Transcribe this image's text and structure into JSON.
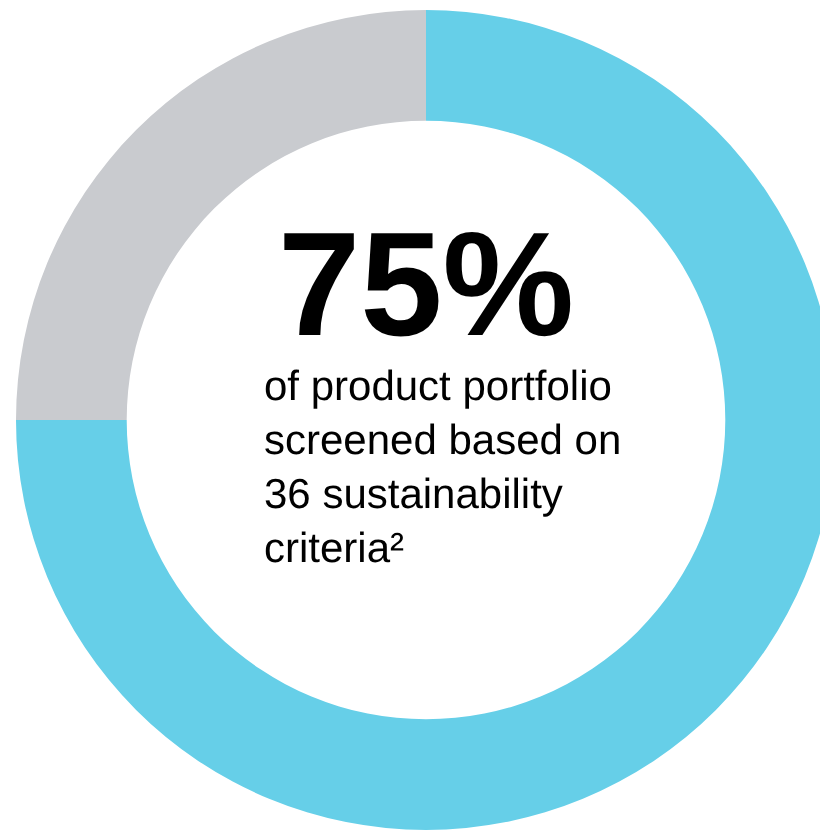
{
  "chart_data": {
    "type": "donut",
    "categories": [
      null,
      null
    ],
    "values": [
      75,
      25
    ],
    "colors": [
      "#66cfe8",
      "#c9cbcf"
    ],
    "value_labels": [
      "75%",
      null
    ],
    "annotations": [
      "of product portfolio screened based on 36 sustainability criteria²"
    ]
  }
}
